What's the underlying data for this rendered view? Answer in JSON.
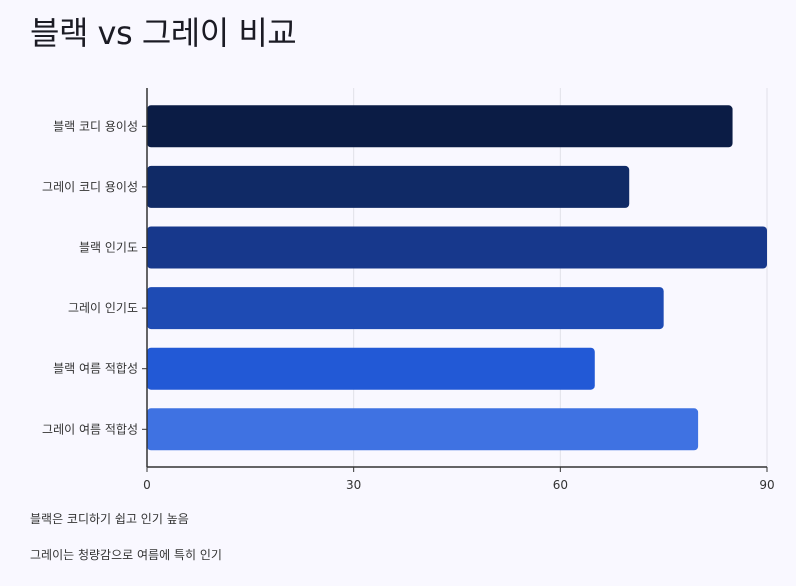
{
  "title": "블랙 vs 그레이 비교",
  "notes": [
    "블랙은 코디하기 쉽고 인기 높음",
    "그레이는 청량감으로 여름에 특히 인기"
  ],
  "chart_data": {
    "type": "bar",
    "orientation": "horizontal",
    "title": "블랙 vs 그레이 비교",
    "categories": [
      "블랙 코디 용이성",
      "그레이 코디 용이성",
      "블랙 인기도",
      "그레이 인기도",
      "블랙 여름 적합성",
      "그레이 여름 적합성"
    ],
    "values": [
      85,
      70,
      90,
      75,
      65,
      80
    ],
    "colors": [
      "#0b1c45",
      "#102a66",
      "#17388c",
      "#1e4bb4",
      "#2259d6",
      "#3f72e2"
    ],
    "xlim": [
      0,
      90
    ],
    "xticks": [
      0,
      30,
      60,
      90
    ],
    "grid": true,
    "xlabel": "",
    "ylabel": ""
  }
}
